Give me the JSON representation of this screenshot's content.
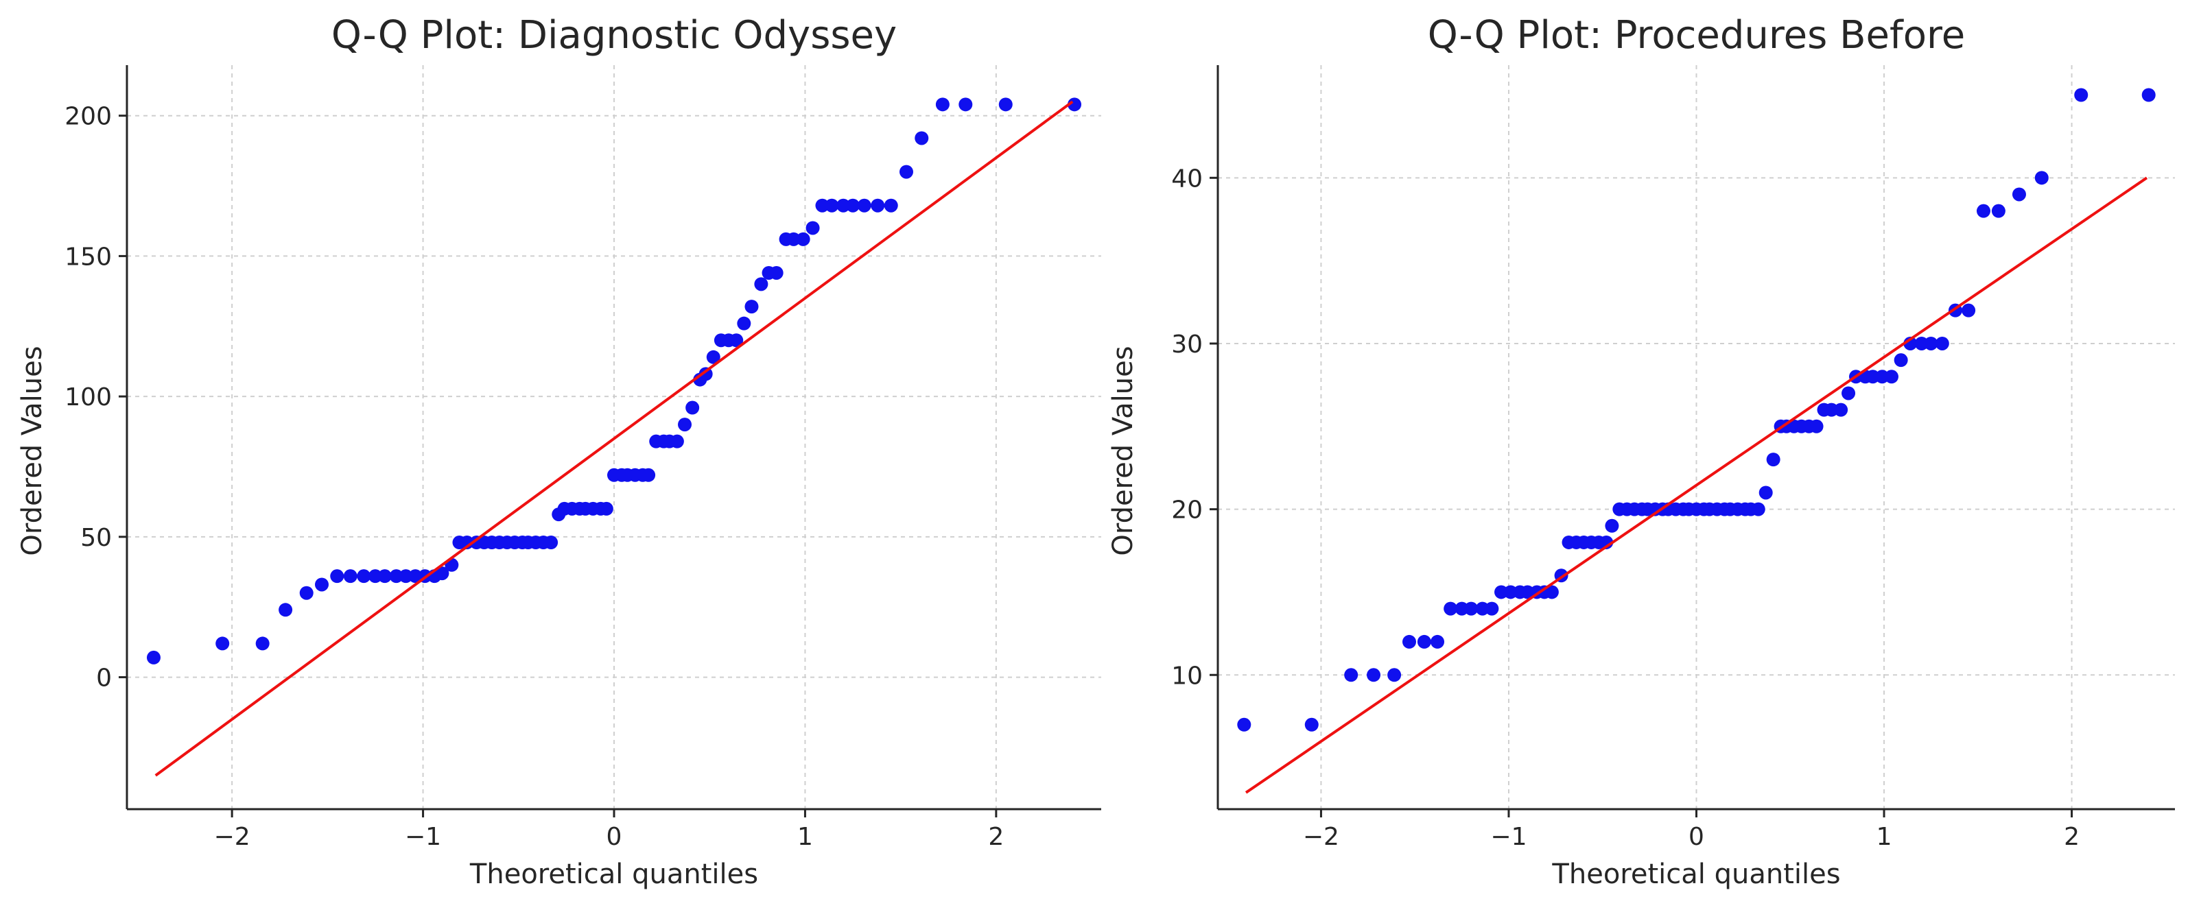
{
  "colors": {
    "points": "#1010ee",
    "fit_line": "#ee1111",
    "grid": "#cfcfcf",
    "axis": "#262626"
  },
  "chart_data": [
    {
      "type": "scatter",
      "title": "Q-Q Plot: Diagnostic Odyssey",
      "xlabel": "Theoretical quantiles",
      "ylabel": "Ordered Values",
      "xlim": [
        -2.55,
        2.55
      ],
      "ylim": [
        -47,
        218
      ],
      "xticks": [
        -2,
        -1,
        0,
        1,
        2
      ],
      "xtick_labels": [
        "−2",
        "−1",
        "0",
        "1",
        "2"
      ],
      "yticks": [
        0,
        50,
        100,
        150,
        200
      ],
      "ytick_labels": [
        "0",
        "50",
        "100",
        "150",
        "200"
      ],
      "grid": true,
      "fit_line": {
        "x": [
          -2.4,
          2.4
        ],
        "y": [
          -35,
          205
        ]
      },
      "x": [
        -2.41,
        -2.05,
        -1.84,
        -1.72,
        -1.61,
        -1.53,
        -1.45,
        -1.38,
        -1.31,
        -1.25,
        -1.2,
        -1.14,
        -1.09,
        -1.04,
        -0.99,
        -0.94,
        -0.9,
        -0.85,
        -0.81,
        -0.77,
        -0.72,
        -0.68,
        -0.64,
        -0.6,
        -0.56,
        -0.52,
        -0.48,
        -0.45,
        -0.41,
        -0.37,
        -0.33,
        -0.29,
        -0.26,
        -0.22,
        -0.18,
        -0.15,
        -0.11,
        -0.07,
        -0.04,
        0.0,
        0.04,
        0.07,
        0.11,
        0.15,
        0.18,
        0.22,
        0.26,
        0.29,
        0.33,
        0.37,
        0.41,
        0.45,
        0.48,
        0.52,
        0.56,
        0.6,
        0.64,
        0.68,
        0.72,
        0.77,
        0.81,
        0.85,
        0.9,
        0.94,
        0.99,
        1.04,
        1.09,
        1.14,
        1.2,
        1.25,
        1.31,
        1.38,
        1.45,
        1.53,
        1.61,
        1.72,
        1.84,
        2.05,
        2.41
      ],
      "y": [
        7,
        12,
        12,
        24,
        30,
        33,
        36,
        36,
        36,
        36,
        36,
        36,
        36,
        36,
        36,
        36,
        37,
        40,
        48,
        48,
        48,
        48,
        48,
        48,
        48,
        48,
        48,
        48,
        48,
        48,
        48,
        58,
        60,
        60,
        60,
        60,
        60,
        60,
        60,
        72,
        72,
        72,
        72,
        72,
        72,
        84,
        84,
        84,
        84,
        90,
        96,
        106,
        108,
        114,
        120,
        120,
        120,
        126,
        132,
        140,
        144,
        144,
        156,
        156,
        156,
        160,
        168,
        168,
        168,
        168,
        168,
        168,
        168,
        180,
        192,
        204,
        204,
        204,
        204
      ]
    },
    {
      "type": "scatter",
      "title": "Q-Q Plot: Procedures Before",
      "xlabel": "Theoretical quantiles",
      "ylabel": "Ordered Values",
      "xlim": [
        -2.55,
        2.55
      ],
      "ylim": [
        1.9,
        46.8
      ],
      "xticks": [
        -2,
        -1,
        0,
        1,
        2
      ],
      "xtick_labels": [
        "−2",
        "−1",
        "0",
        "1",
        "2"
      ],
      "yticks": [
        10,
        20,
        30,
        40
      ],
      "ytick_labels": [
        "10",
        "20",
        "30",
        "40"
      ],
      "grid": true,
      "fit_line": {
        "x": [
          -2.4,
          2.4
        ],
        "y": [
          2.9,
          40
        ]
      },
      "x": [
        -2.41,
        -2.05,
        -1.84,
        -1.72,
        -1.61,
        -1.53,
        -1.45,
        -1.38,
        -1.31,
        -1.25,
        -1.2,
        -1.14,
        -1.09,
        -1.04,
        -0.99,
        -0.94,
        -0.9,
        -0.85,
        -0.81,
        -0.77,
        -0.72,
        -0.68,
        -0.64,
        -0.6,
        -0.56,
        -0.52,
        -0.48,
        -0.45,
        -0.41,
        -0.37,
        -0.33,
        -0.29,
        -0.26,
        -0.22,
        -0.18,
        -0.15,
        -0.11,
        -0.07,
        -0.04,
        0.0,
        0.04,
        0.07,
        0.11,
        0.15,
        0.18,
        0.22,
        0.26,
        0.29,
        0.33,
        0.37,
        0.41,
        0.45,
        0.48,
        0.52,
        0.56,
        0.6,
        0.64,
        0.68,
        0.72,
        0.77,
        0.81,
        0.85,
        0.9,
        0.94,
        0.99,
        1.04,
        1.09,
        1.14,
        1.2,
        1.25,
        1.31,
        1.38,
        1.45,
        1.53,
        1.61,
        1.72,
        1.84,
        2.05,
        2.41
      ],
      "y": [
        7,
        7,
        10,
        10,
        10,
        12,
        12,
        12,
        14,
        14,
        14,
        14,
        14,
        15,
        15,
        15,
        15,
        15,
        15,
        15,
        16,
        18,
        18,
        18,
        18,
        18,
        18,
        19,
        20,
        20,
        20,
        20,
        20,
        20,
        20,
        20,
        20,
        20,
        20,
        20,
        20,
        20,
        20,
        20,
        20,
        20,
        20,
        20,
        20,
        21,
        23,
        25,
        25,
        25,
        25,
        25,
        25,
        26,
        26,
        26,
        27,
        28,
        28,
        28,
        28,
        28,
        29,
        30,
        30,
        30,
        30,
        32,
        32,
        38,
        38,
        39,
        40,
        45,
        45
      ]
    }
  ]
}
